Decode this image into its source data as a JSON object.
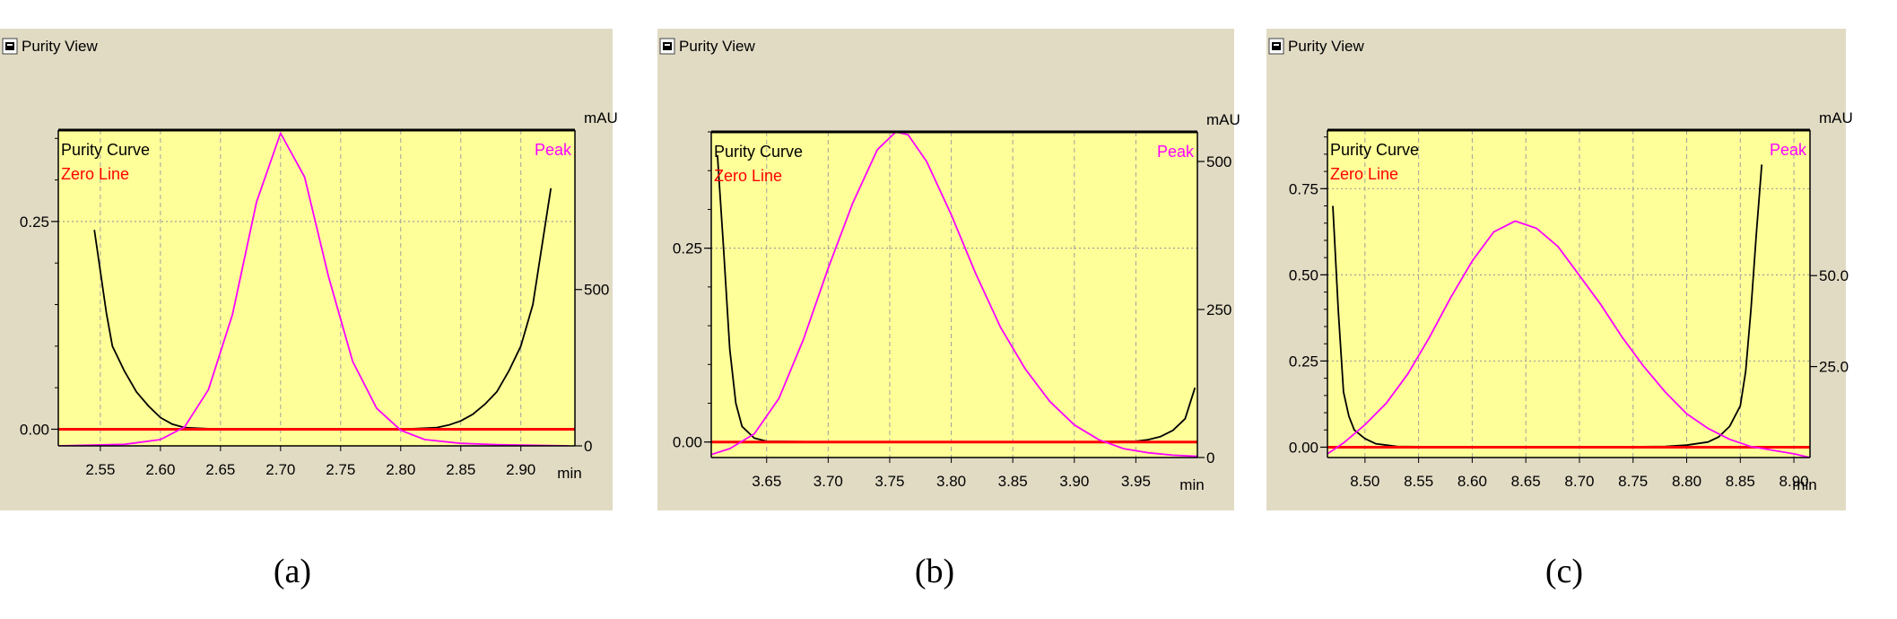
{
  "panels": [
    {
      "caption": "(a)",
      "window_title": "Purity View",
      "legend": {
        "purity": "Purity Curve",
        "zero": "Zero Line",
        "peak": "Peak"
      },
      "right_unit": "mAU",
      "x_unit": "min",
      "icons": [
        "window-button-icon"
      ]
    },
    {
      "caption": "(b)",
      "window_title": "Purity View",
      "legend": {
        "purity": "Purity Curve",
        "zero": "Zero Line",
        "peak": "Peak"
      },
      "right_unit": "mAU",
      "x_unit": "min",
      "icons": [
        "window-button-icon"
      ]
    },
    {
      "caption": "(c)",
      "window_title": "Purity View",
      "legend": {
        "purity": "Purity Curve",
        "zero": "Zero Line",
        "peak": "Peak"
      },
      "right_unit": "mAU",
      "x_unit": "min",
      "icons": [
        "window-button-icon"
      ]
    }
  ],
  "colors": {
    "plot_bg": "#ffff99",
    "window_bg": "#e1dbc4",
    "purity_curve": "#000000",
    "zero_line": "#ff0000",
    "peak": "#ff00ff",
    "grid": "#a0a0a0"
  },
  "chart_data": [
    {
      "type": "line",
      "xlim": [
        2.515,
        2.945
      ],
      "ylim": [
        -0.02,
        0.36
      ],
      "y2lim": [
        0,
        1010
      ],
      "x_ticks": [
        2.55,
        2.6,
        2.65,
        2.7,
        2.75,
        2.8,
        2.85,
        2.9
      ],
      "x_tick_labels": [
        "2.55",
        "2.60",
        "2.65",
        "2.70",
        "2.75",
        "2.80",
        "2.85",
        "2.90"
      ],
      "y_ticks": [
        0.0,
        0.25
      ],
      "y_tick_labels": [
        "0.00",
        "0.25"
      ],
      "y2_ticks": [
        0,
        500
      ],
      "y2_tick_labels": [
        "0",
        "500"
      ],
      "grid": true,
      "series": [
        {
          "name": "Purity Curve",
          "axis": "left",
          "x": [
            2.545,
            2.55,
            2.555,
            2.56,
            2.57,
            2.58,
            2.59,
            2.6,
            2.61,
            2.62,
            2.65,
            2.7,
            2.75,
            2.8,
            2.83,
            2.84,
            2.85,
            2.86,
            2.87,
            2.88,
            2.89,
            2.9,
            2.91,
            2.925
          ],
          "y": [
            0.24,
            0.19,
            0.14,
            0.1,
            0.07,
            0.045,
            0.028,
            0.014,
            0.006,
            0.002,
            0.0,
            0.0,
            0.0,
            0.0,
            0.002,
            0.005,
            0.01,
            0.018,
            0.03,
            0.045,
            0.07,
            0.1,
            0.15,
            0.29
          ]
        },
        {
          "name": "Zero Line",
          "axis": "left",
          "x": [
            2.515,
            2.945
          ],
          "y": [
            0.0,
            0.0
          ]
        },
        {
          "name": "Peak",
          "axis": "right",
          "x": [
            2.515,
            2.57,
            2.6,
            2.62,
            2.64,
            2.66,
            2.68,
            2.7,
            2.72,
            2.74,
            2.76,
            2.78,
            2.8,
            2.82,
            2.85,
            2.88,
            2.94
          ],
          "y": [
            0,
            5,
            20,
            60,
            180,
            420,
            780,
            1000,
            860,
            540,
            270,
            120,
            50,
            20,
            8,
            4,
            0
          ]
        }
      ]
    },
    {
      "type": "line",
      "xlim": [
        3.605,
        4.0
      ],
      "ylim": [
        -0.02,
        0.4
      ],
      "y2lim": [
        0,
        550
      ],
      "x_ticks": [
        3.65,
        3.7,
        3.75,
        3.8,
        3.85,
        3.9,
        3.95
      ],
      "x_tick_labels": [
        "3.65",
        "3.70",
        "3.75",
        "3.80",
        "3.85",
        "3.90",
        "3.95"
      ],
      "y_ticks": [
        0.0,
        0.25
      ],
      "y_tick_labels": [
        "0.00",
        "0.25"
      ],
      "y2_ticks": [
        0,
        250,
        500
      ],
      "y2_tick_labels": [
        "0",
        "250",
        "500"
      ],
      "grid": true,
      "series": [
        {
          "name": "Purity Curve",
          "axis": "left",
          "x": [
            3.61,
            3.615,
            3.62,
            3.625,
            3.63,
            3.64,
            3.65,
            3.7,
            3.8,
            3.9,
            3.95,
            3.96,
            3.97,
            3.98,
            3.99,
            3.998
          ],
          "y": [
            0.37,
            0.25,
            0.12,
            0.05,
            0.02,
            0.005,
            0.001,
            0.0,
            0.0,
            0.0,
            0.001,
            0.003,
            0.007,
            0.015,
            0.03,
            0.07
          ]
        },
        {
          "name": "Zero Line",
          "axis": "left",
          "x": [
            3.605,
            4.0
          ],
          "y": [
            0.0,
            0.0
          ]
        },
        {
          "name": "Peak",
          "axis": "right",
          "x": [
            3.605,
            3.62,
            3.64,
            3.66,
            3.68,
            3.7,
            3.72,
            3.74,
            3.755,
            3.765,
            3.78,
            3.8,
            3.82,
            3.84,
            3.86,
            3.88,
            3.9,
            3.92,
            3.94,
            3.96,
            3.98,
            4.0
          ],
          "y": [
            5,
            15,
            40,
            100,
            200,
            320,
            430,
            520,
            550,
            545,
            500,
            410,
            310,
            220,
            150,
            95,
            55,
            30,
            15,
            8,
            4,
            2
          ]
        }
      ]
    },
    {
      "type": "line",
      "xlim": [
        8.465,
        8.915
      ],
      "ylim": [
        -0.03,
        0.92
      ],
      "y2lim": [
        0,
        90
      ],
      "x_ticks": [
        8.5,
        8.55,
        8.6,
        8.65,
        8.7,
        8.75,
        8.8,
        8.85,
        8.9
      ],
      "x_tick_labels": [
        "8.50",
        "8.55",
        "8.60",
        "8.65",
        "8.70",
        "8.75",
        "8.80",
        "8.85",
        "8.90"
      ],
      "y_ticks": [
        0.0,
        0.25,
        0.5,
        0.75
      ],
      "y_tick_labels": [
        "0.00",
        "0.25",
        "0.50",
        "0.75"
      ],
      "y2_ticks": [
        25.0,
        50.0
      ],
      "y2_tick_labels": [
        "25.0",
        "50.0"
      ],
      "grid": true,
      "series": [
        {
          "name": "Purity Curve",
          "axis": "left",
          "x": [
            8.47,
            8.475,
            8.48,
            8.485,
            8.49,
            8.5,
            8.51,
            8.53,
            8.6,
            8.7,
            8.78,
            8.8,
            8.82,
            8.83,
            8.84,
            8.85,
            8.855,
            8.86,
            8.865,
            8.87
          ],
          "y": [
            0.7,
            0.4,
            0.16,
            0.09,
            0.05,
            0.025,
            0.01,
            0.002,
            0.0,
            0.0,
            0.002,
            0.006,
            0.015,
            0.03,
            0.06,
            0.12,
            0.22,
            0.4,
            0.62,
            0.82
          ]
        },
        {
          "name": "Zero Line",
          "axis": "left",
          "x": [
            8.465,
            8.915
          ],
          "y": [
            0.0,
            0.0
          ]
        },
        {
          "name": "Peak",
          "axis": "right",
          "x": [
            8.465,
            8.48,
            8.5,
            8.52,
            8.54,
            8.56,
            8.58,
            8.6,
            8.62,
            8.64,
            8.66,
            8.68,
            8.7,
            8.72,
            8.74,
            8.76,
            8.78,
            8.8,
            8.82,
            8.84,
            8.86,
            8.88,
            8.9,
            8.915
          ],
          "y": [
            1,
            4,
            9,
            15,
            23,
            33,
            44,
            54,
            62,
            65,
            63,
            58,
            50,
            42,
            33,
            25,
            18,
            12,
            8,
            5,
            3,
            2,
            1,
            0
          ]
        }
      ]
    }
  ]
}
